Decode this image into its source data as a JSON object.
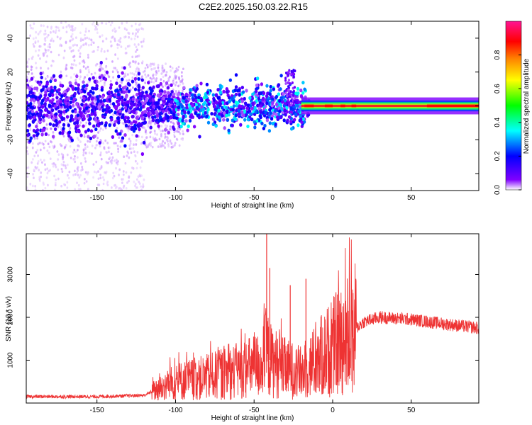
{
  "page_title": "C2E2.2025.150.03.22.R15",
  "colors": {
    "snr_line": "#ee3333",
    "spectrogram_core": "#ff2020",
    "frame": "#000000"
  },
  "chart_data": [
    {
      "type": "heatmap",
      "title": "C2E2.2025.150.03.22.R15",
      "xlabel": "Height of straight line (km)",
      "ylabel": "Frequency (Hz)",
      "xlim": [
        -195,
        93
      ],
      "ylim": [
        -50,
        50
      ],
      "x_ticks": [
        -150,
        -100,
        -50,
        0,
        50
      ],
      "y_ticks": [
        -40,
        -20,
        0,
        20,
        40
      ],
      "colorbar": {
        "label": "Normalized spectral amplitude",
        "range": [
          0.0,
          1.0
        ],
        "ticks": [
          "0.0",
          "0.2",
          "0.4",
          "0.6",
          "0.8"
        ],
        "colormap": [
          "#ffffff",
          "#8000ff",
          "#0000ff",
          "#00ffff",
          "#00ff00",
          "#ffff00",
          "#ff8000",
          "#ff0000",
          "#ff00aa"
        ]
      },
      "description_bands": [
        {
          "x": [
            -195,
            -120
          ],
          "freq_halfwidth": 50,
          "amplitude": 0.1
        },
        {
          "x": [
            -120,
            -20
          ],
          "freq_halfwidth": 10,
          "amplitude": 0.35
        },
        {
          "x": [
            -20,
            93
          ],
          "freq_halfwidth": 4,
          "amplitude": 0.9
        }
      ]
    },
    {
      "type": "line",
      "xlabel": "Height of straight line (km)",
      "ylabel": "SNR (10 * v/v)",
      "xlim": [
        -195,
        93
      ],
      "ylim": [
        0,
        3950
      ],
      "x_ticks": [
        -150,
        -100,
        -50,
        0,
        50
      ],
      "y_ticks": [
        1000,
        2000,
        3000
      ],
      "series": [
        {
          "profile_x": [
            -195,
            -150,
            -120,
            -110,
            -100,
            -80,
            -60,
            -45,
            -42,
            -40,
            -30,
            -20,
            -10,
            0,
            10,
            20,
            30,
            50,
            70,
            93
          ],
          "profile_y": [
            150,
            150,
            180,
            350,
            500,
            600,
            750,
            900,
            1200,
            1000,
            800,
            700,
            1000,
            1300,
            1600,
            1900,
            2000,
            1950,
            1850,
            1750
          ]
        }
      ],
      "spikes": [
        {
          "x": -42,
          "y": 3950
        },
        {
          "x": -40,
          "y": 3150
        },
        {
          "x": -27,
          "y": 2750
        },
        {
          "x": -17,
          "y": 2900
        }
      ]
    }
  ]
}
